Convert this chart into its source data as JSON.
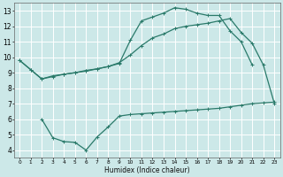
{
  "xlabel": "Humidex (Indice chaleur)",
  "bg_color": "#cce8e8",
  "grid_color": "#ffffff",
  "line_color": "#2a7a6a",
  "xlim": [
    -0.5,
    23.5
  ],
  "ylim": [
    3.5,
    13.5
  ],
  "xtick_vals": [
    0,
    1,
    2,
    3,
    4,
    5,
    6,
    7,
    8,
    9,
    10,
    11,
    12,
    13,
    14,
    15,
    16,
    17,
    18,
    19,
    20,
    21,
    22,
    23
  ],
  "xtick_labels": [
    "0",
    "1",
    "2",
    "3",
    "4",
    "5",
    "6",
    "7",
    "8",
    "9",
    "10",
    "11",
    "12",
    "13",
    "14",
    "15",
    "16",
    "17",
    "18",
    "19",
    "20",
    "21",
    "22",
    "23"
  ],
  "ytick_vals": [
    4,
    5,
    6,
    7,
    8,
    9,
    10,
    11,
    12,
    13
  ],
  "ytick_labels": [
    "4",
    "5",
    "6",
    "7",
    "8",
    "9",
    "10",
    "11",
    "12",
    "13"
  ],
  "curve1_x": [
    0,
    1,
    2,
    3,
    4,
    5,
    6,
    7,
    8,
    9,
    10,
    11,
    12,
    13,
    14,
    15,
    16,
    17,
    18,
    19,
    20,
    21
  ],
  "curve1_y": [
    9.8,
    9.2,
    8.6,
    8.8,
    8.9,
    9.0,
    9.15,
    9.25,
    9.4,
    9.6,
    11.1,
    12.35,
    12.6,
    12.85,
    13.2,
    13.1,
    12.85,
    12.7,
    12.7,
    11.7,
    11.0,
    9.5
  ],
  "curve2_x": [
    0,
    1,
    2,
    3,
    4,
    5,
    6,
    7,
    8,
    9,
    10,
    11,
    12,
    13,
    14,
    15,
    16,
    17,
    18,
    19,
    20,
    21,
    22,
    23
  ],
  "curve2_y": [
    9.8,
    9.2,
    8.6,
    8.75,
    8.9,
    9.0,
    9.1,
    9.25,
    9.4,
    9.65,
    10.15,
    10.75,
    11.25,
    11.5,
    11.85,
    12.0,
    12.1,
    12.2,
    12.35,
    12.5,
    11.6,
    10.9,
    9.5,
    7.0
  ],
  "curve3_x": [
    2,
    3,
    4,
    5,
    6,
    7,
    8,
    9,
    10,
    11,
    12,
    13,
    14,
    15,
    16,
    17,
    18,
    19,
    20,
    21,
    22,
    23
  ],
  "curve3_y": [
    6.0,
    4.8,
    4.55,
    4.5,
    4.0,
    4.85,
    5.5,
    6.2,
    6.3,
    6.35,
    6.4,
    6.45,
    6.5,
    6.55,
    6.6,
    6.65,
    6.7,
    6.8,
    6.9,
    7.0,
    7.05,
    7.1
  ],
  "marker_size": 2.5,
  "line_width": 0.9
}
